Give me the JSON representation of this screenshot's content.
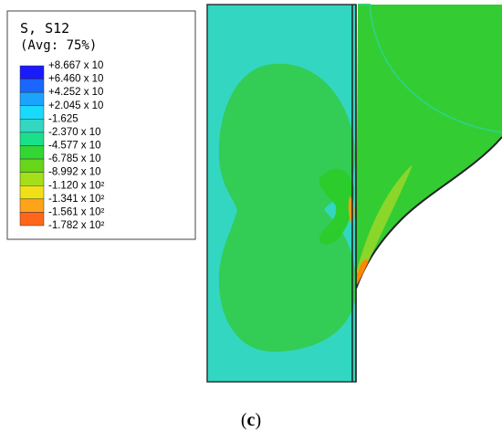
{
  "legend": {
    "title": "S, S12",
    "subtitle": "(Avg: 75%)",
    "labels": [
      "+8.667 x 10",
      "+6.460 x 10",
      "+4.252 x 10",
      "+2.045 x 10",
      "-1.625",
      "-2.370 x 10",
      "-4.577 x 10",
      "-6.785 x 10",
      "-8.992 x 10",
      "-1.120 x 10²",
      "-1.341 x 10²",
      "-1.561 x 10²",
      "-1.782 x 10²"
    ],
    "colors": [
      "#1a1aff",
      "#1a66ff",
      "#1aa3ff",
      "#1ad9ff",
      "#33d6c1",
      "#1ae08c",
      "#33d633",
      "#66d61a",
      "#a3e01a",
      "#f0e01a",
      "#ffa31a",
      "#ff661a",
      "#ff1a1a"
    ]
  },
  "caption": {
    "parts": [
      "(",
      "c",
      ")"
    ]
  }
}
